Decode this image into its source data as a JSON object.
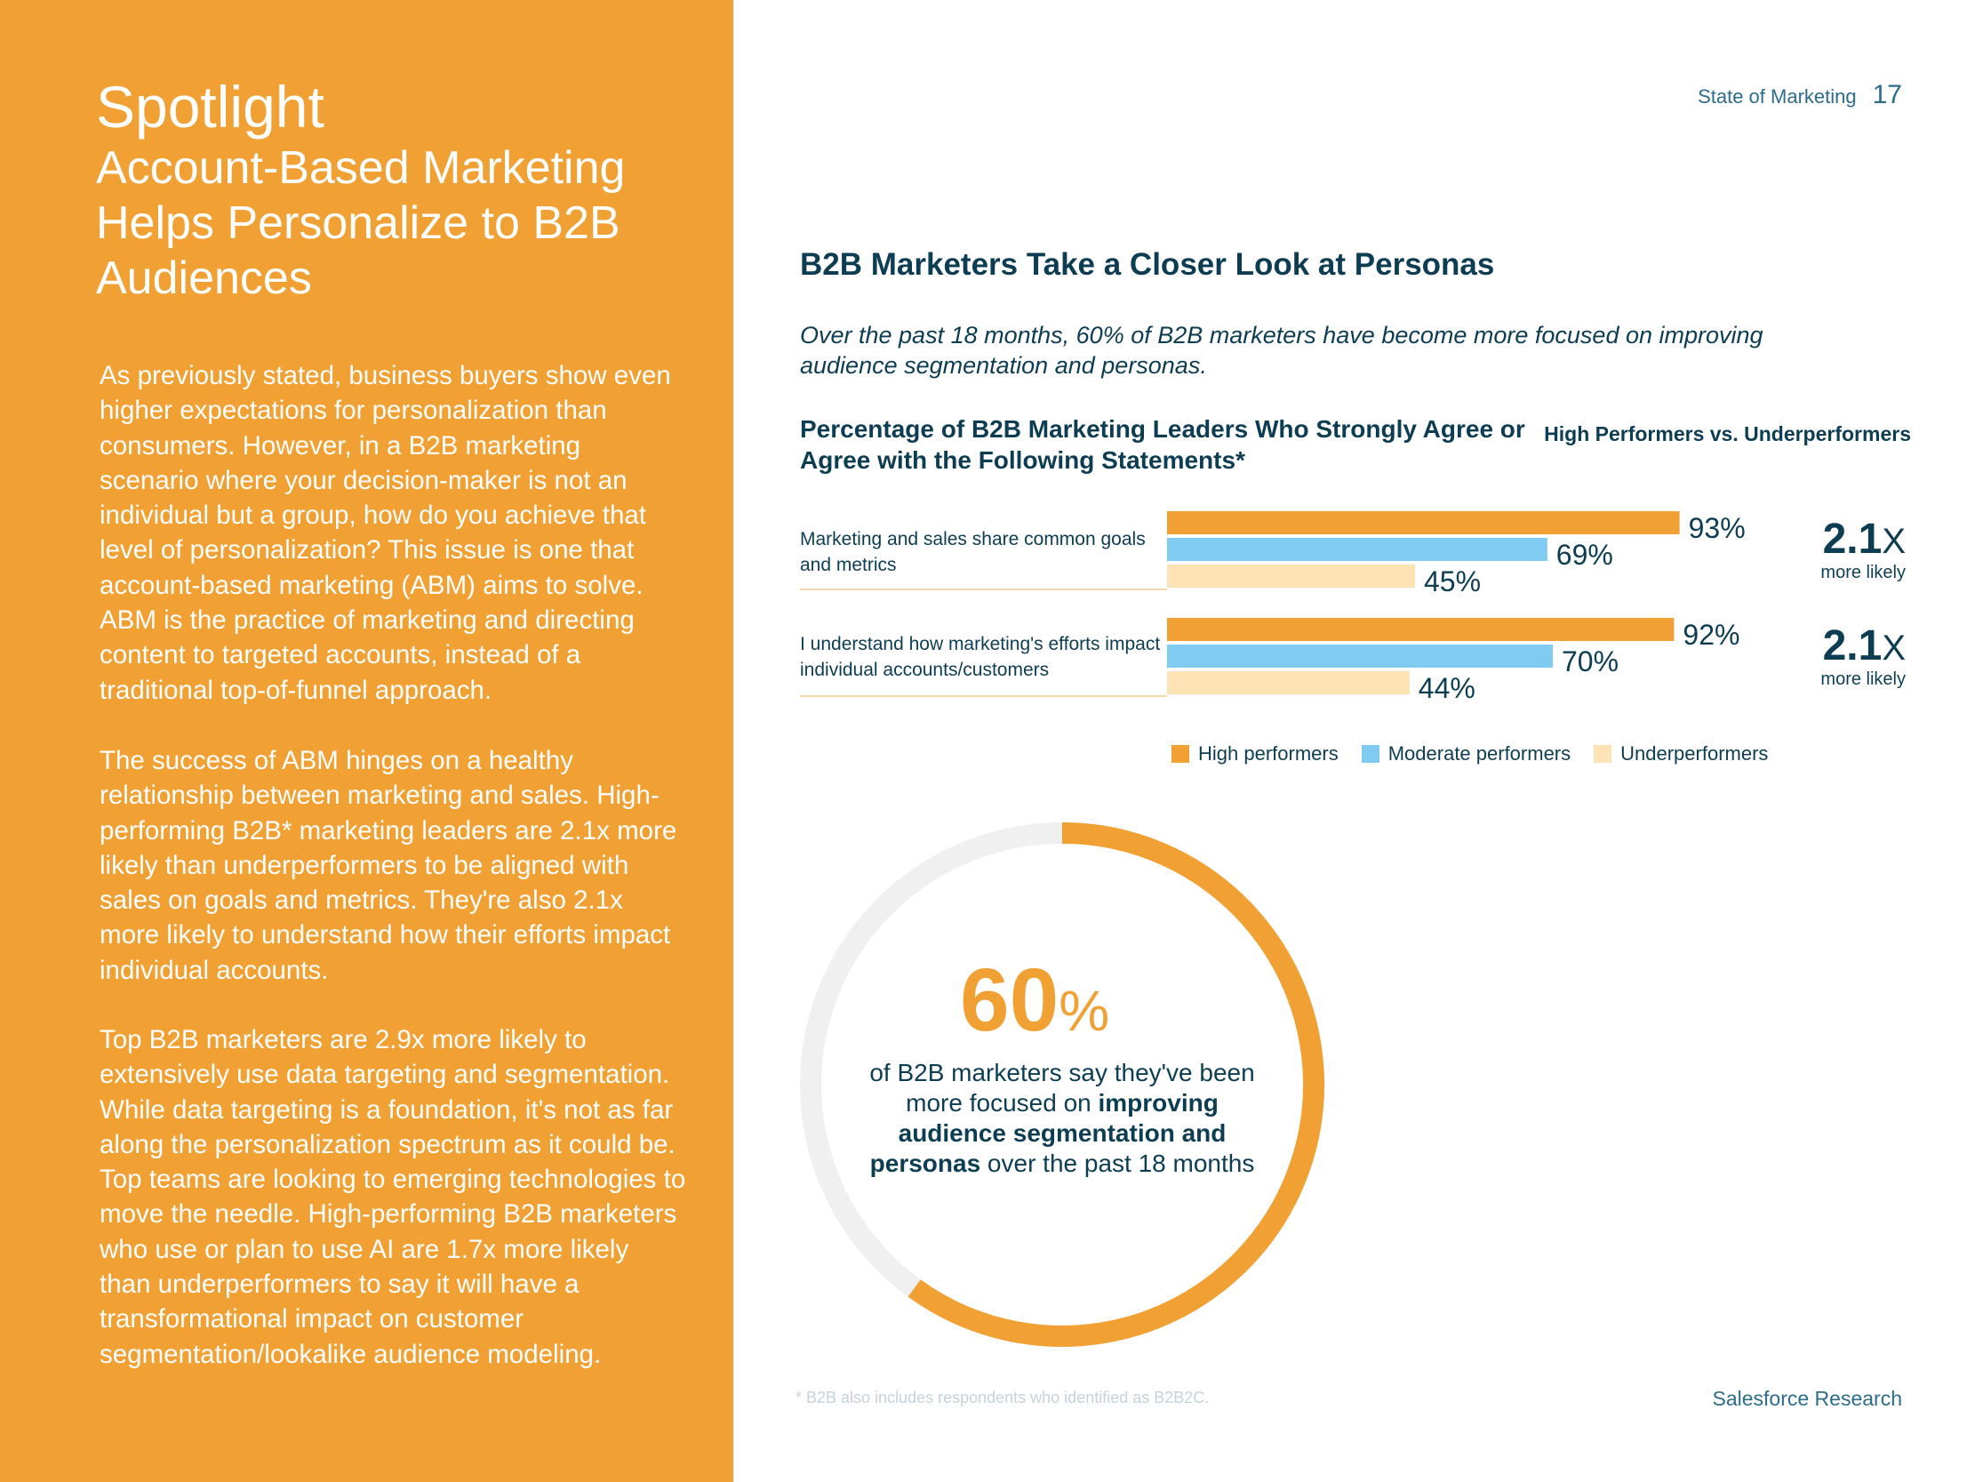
{
  "left_panel": {
    "title": "Spotlight",
    "subtitle": "Account-Based Marketing Helps Personalize to B2B Audiences",
    "paragraphs": [
      "As previously stated, business buyers show even higher expectations for personalization than consumers. However, in a B2B marketing scenario where your decision-maker is not an individual but a group, how do you achieve that level of personalization? This issue is one that account-based marketing (ABM) aims to solve. ABM is the practice of marketing and directing content to targeted accounts, instead of a traditional top-of-funnel approach.",
      "The success of ABM hinges on a healthy relationship between marketing and sales. High-performing B2B* marketing leaders are 2.1x more likely than underperformers to be aligned with sales on goals and metrics. They're also 2.1x more likely to understand how their efforts impact individual accounts.",
      "Top B2B marketers are 2.9x more likely to extensively use data targeting and segmentation. While data targeting is a foundation, it's not as far along the personalization spectrum as it could be. Top teams are looking to emerging technologies to move the needle. High-performing B2B marketers who use or plan to use AI are 1.7x more likely than underperformers to say it will have a transformational impact on customer segmentation/lookalike audience modeling."
    ]
  },
  "header": {
    "title": "State of Marketing",
    "page_number": "17"
  },
  "section": {
    "heading": "B2B Marketers Take a Closer Look at Personas",
    "intro": "Over the past 18 months, 60% of B2B marketers have become more focused on improving audience segmentation and personas."
  },
  "colors": {
    "high": "#f1a133",
    "moderate": "#7fcbf2",
    "under": "#fde3b4",
    "navy": "#0d3d52",
    "donut_track": "#f0f0f0"
  },
  "chart_data": [
    {
      "type": "bar",
      "orientation": "horizontal",
      "title": "Percentage of B2B Marketing Leaders Who Strongly Agree or Agree with the Following Statements*",
      "comparison_header": "High Performers vs. Underperformers",
      "xlim": [
        0,
        100
      ],
      "categories": [
        "Marketing and sales share common goals and metrics",
        "I understand how marketing's efforts impact individual accounts/customers"
      ],
      "series": [
        {
          "name": "High performers",
          "values": [
            93,
            92
          ],
          "labels": [
            "93%",
            "92%"
          ]
        },
        {
          "name": "Moderate performers",
          "values": [
            69,
            70
          ],
          "labels": [
            "69%",
            "70%"
          ]
        },
        {
          "name": "Underperformers",
          "values": [
            45,
            44
          ],
          "labels": [
            "45%",
            "44%"
          ]
        }
      ],
      "multipliers": [
        {
          "value": "2.1",
          "suffix": "X",
          "caption": "more likely"
        },
        {
          "value": "2.1",
          "suffix": "X",
          "caption": "more likely"
        }
      ],
      "legend_position": "bottom"
    },
    {
      "type": "pie",
      "style": "donut",
      "value": 60,
      "max": 100,
      "big_number": "60",
      "big_suffix": "%",
      "caption_parts": {
        "pre": "of B2B marketers say they've been more focused on ",
        "bold": "improving audience segmentation and personas",
        "post": " over the past 18 months"
      }
    }
  ],
  "footer": {
    "footnote": "* B2B also includes respondents who identified as B2B2C.",
    "brand": "Salesforce Research"
  }
}
